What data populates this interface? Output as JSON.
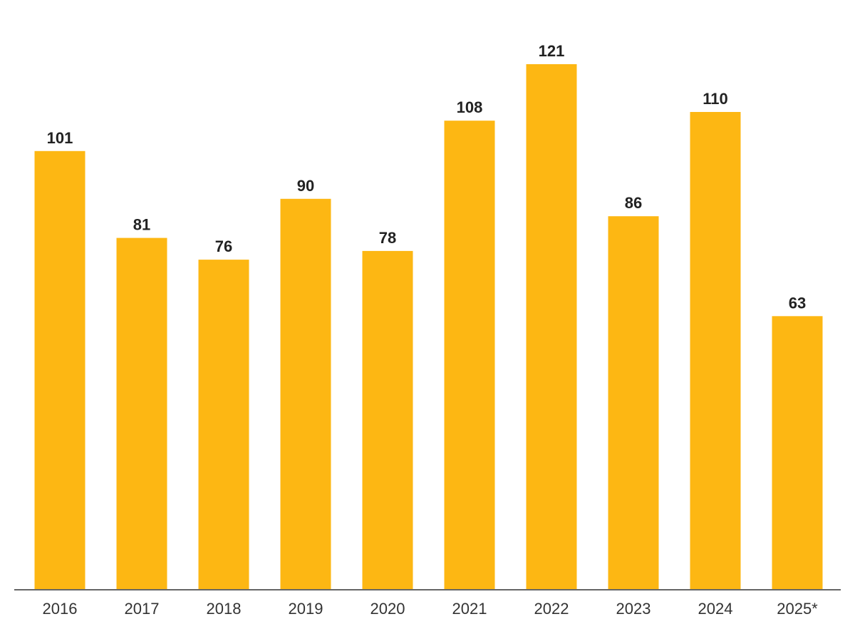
{
  "chart_data": {
    "type": "bar",
    "title": "",
    "xlabel": "",
    "ylabel": "",
    "categories": [
      "2016",
      "2017",
      "2018",
      "2019",
      "2020",
      "2021",
      "2022",
      "2023",
      "2024",
      "2025*"
    ],
    "values": [
      101,
      81,
      76,
      90,
      78,
      108,
      121,
      86,
      110,
      63
    ],
    "value_labels": [
      "101",
      "81",
      "76",
      "90",
      "78",
      "108",
      "121",
      "86",
      "110",
      "63"
    ],
    "ylim": [
      0,
      121
    ],
    "grid": false,
    "legend": "none",
    "colors": {
      "bar": "#FDB713",
      "axis": "#666666"
    }
  }
}
